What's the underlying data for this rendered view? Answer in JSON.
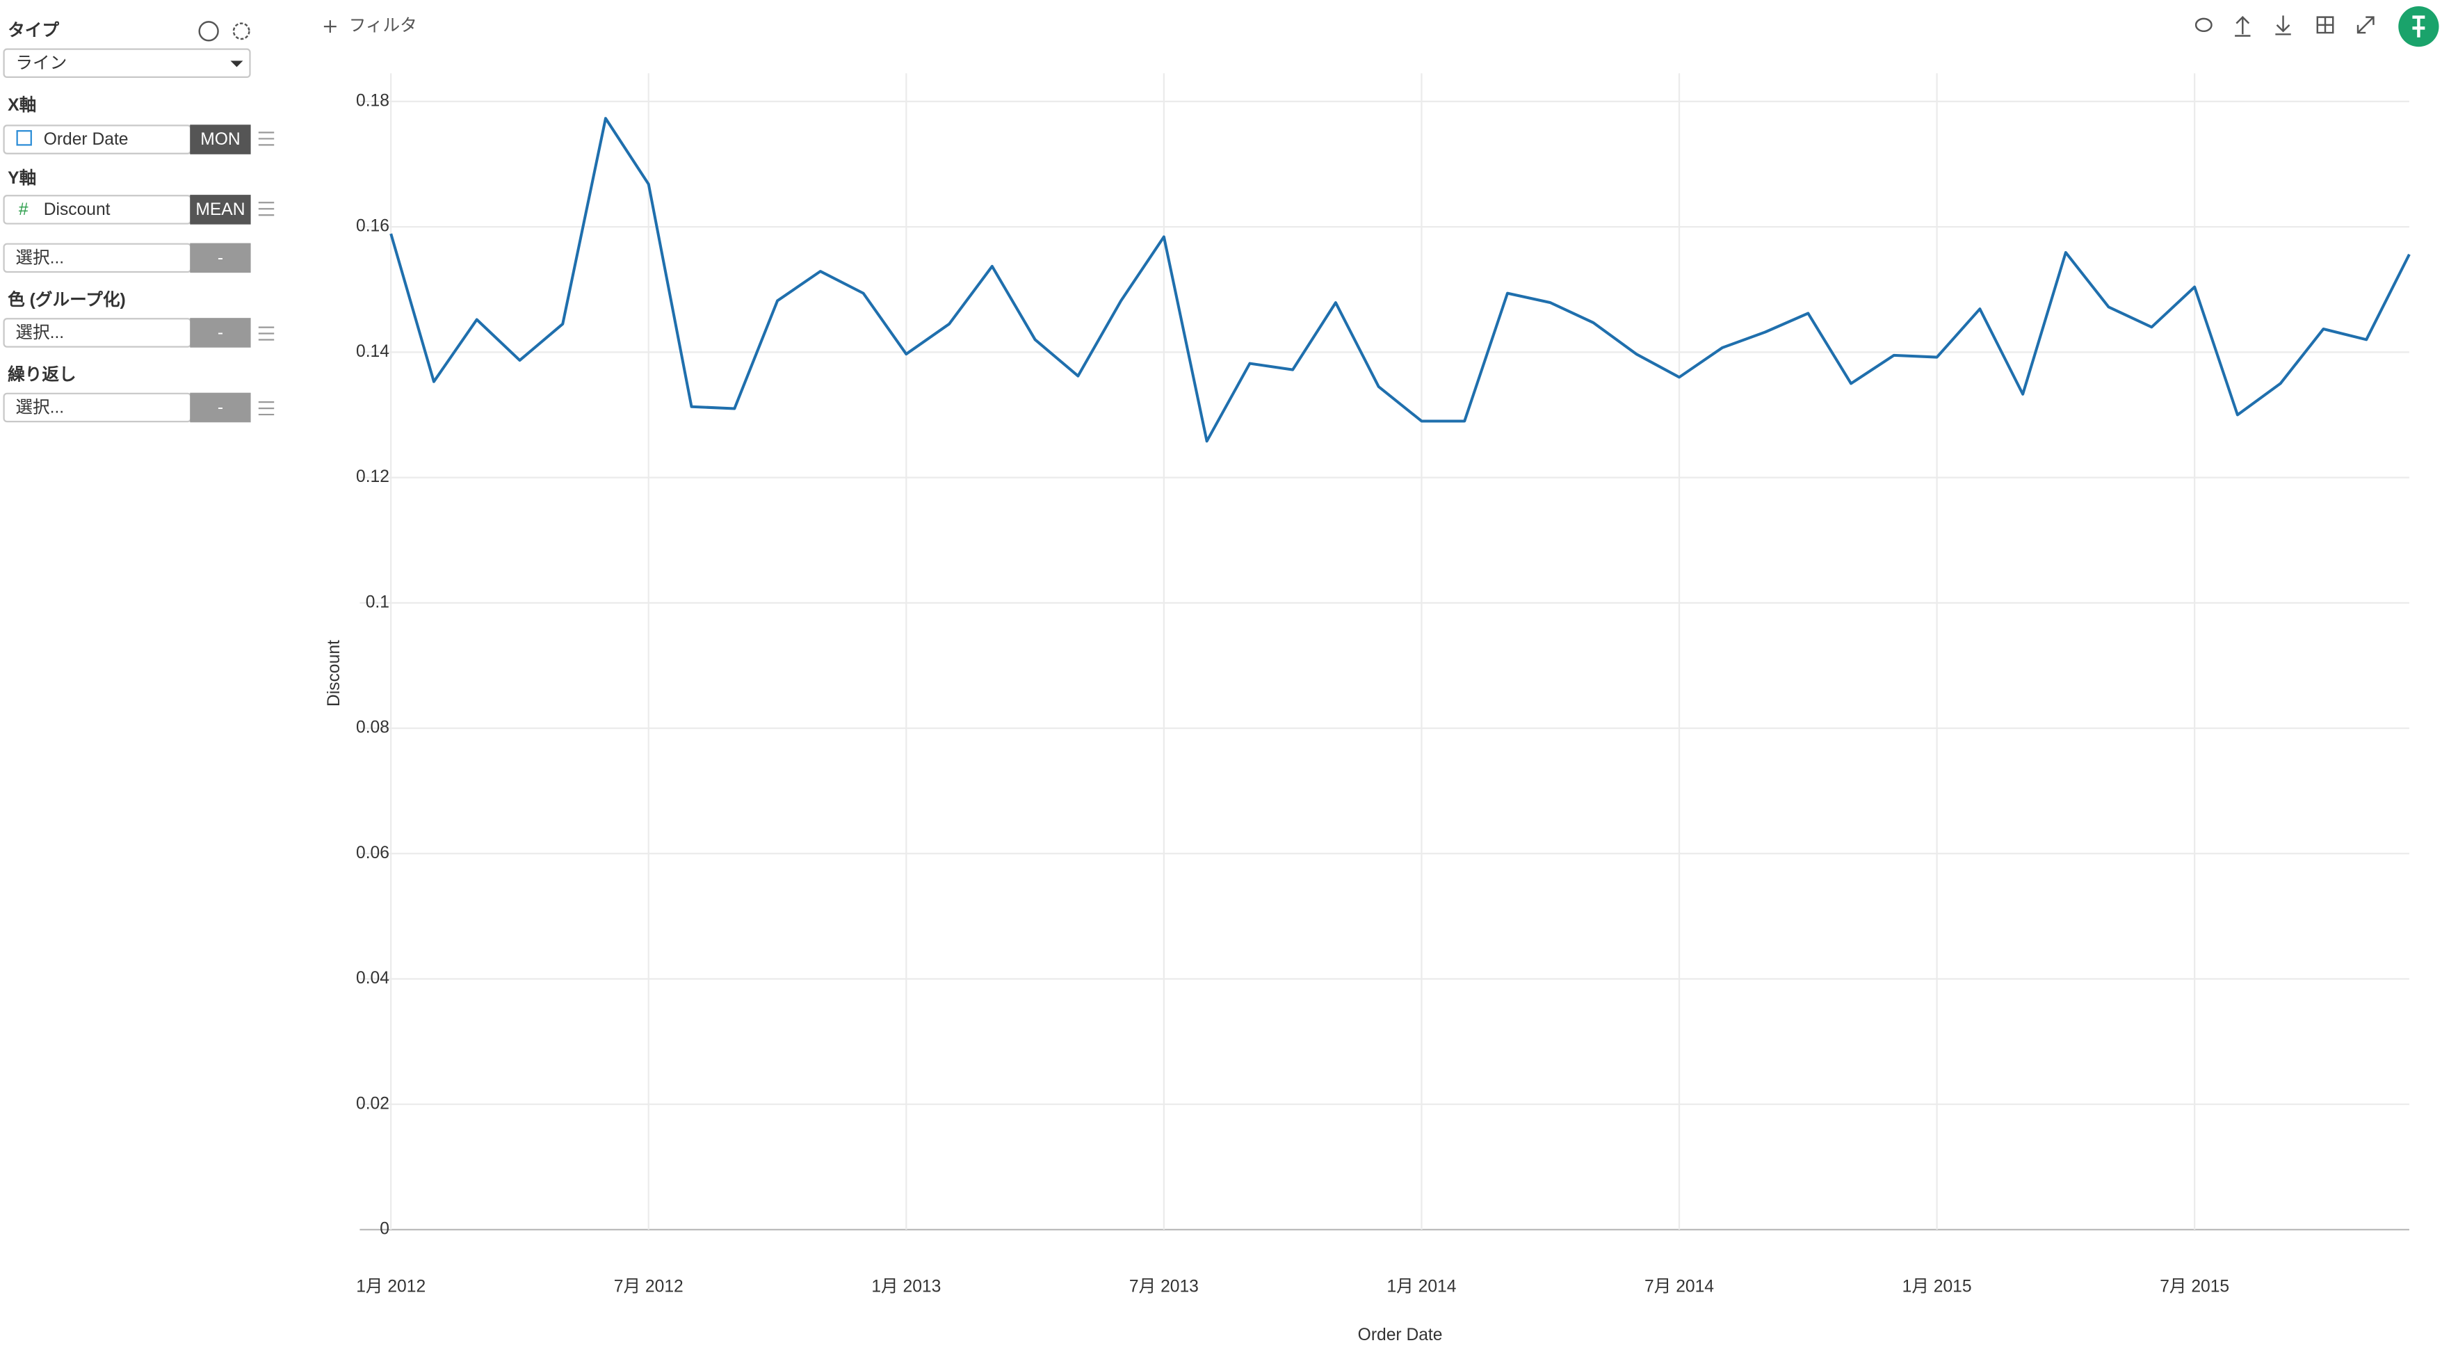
{
  "sidebar": {
    "type_label": "タイプ",
    "type_value": "ライン",
    "x_label": "X軸",
    "x_field": "Order Date",
    "x_agg": "MON",
    "y_label": "Y軸",
    "y_field": "Discount",
    "y_agg": "MEAN",
    "extra_select": {
      "placeholder": "選択...",
      "button": "-"
    },
    "color_label": "色 (グループ化)",
    "color_select": {
      "placeholder": "選択...",
      "button": "-"
    },
    "repeat_label": "繰り返し",
    "repeat_select": {
      "placeholder": "選択...",
      "button": "-"
    }
  },
  "toolbar": {
    "filter": "フィルタ"
  },
  "chart_data": {
    "type": "line",
    "x_label": "Order Date",
    "y_label": "Discount",
    "grid": true,
    "x": [
      "2012-01",
      "2012-02",
      "2012-03",
      "2012-04",
      "2012-05",
      "2012-06",
      "2012-07",
      "2012-08",
      "2012-09",
      "2012-10",
      "2012-11",
      "2012-12",
      "2013-01",
      "2013-02",
      "2013-03",
      "2013-04",
      "2013-05",
      "2013-06",
      "2013-07",
      "2013-08",
      "2013-09",
      "2013-10",
      "2013-11",
      "2013-12",
      "2014-01",
      "2014-02",
      "2014-03",
      "2014-04",
      "2014-05",
      "2014-06",
      "2014-07",
      "2014-08",
      "2014-09",
      "2014-10",
      "2014-11",
      "2014-12",
      "2015-01",
      "2015-02",
      "2015-03",
      "2015-04",
      "2015-05",
      "2015-06",
      "2015-07",
      "2015-08",
      "2015-09",
      "2015-10",
      "2015-11",
      "2015-12"
    ],
    "series": [
      {
        "name": "Discount",
        "color": "#1f6fad",
        "values": [
          0.1589,
          0.1353,
          0.1452,
          0.1387,
          0.1445,
          0.1773,
          0.1668,
          0.1313,
          0.131,
          0.1482,
          0.1529,
          0.1494,
          0.1397,
          0.1445,
          0.1537,
          0.142,
          0.1362,
          0.1482,
          0.1584,
          0.1258,
          0.1382,
          0.1372,
          0.1479,
          0.1345,
          0.129,
          0.129,
          0.1494,
          0.1479,
          0.1447,
          0.1397,
          0.136,
          0.1407,
          0.1432,
          0.1462,
          0.135,
          0.1395,
          0.1392,
          0.1469,
          0.1333,
          0.1559,
          0.1472,
          0.144,
          0.1504,
          0.13,
          0.135,
          0.1437,
          0.142,
          0.1556
        ]
      }
    ],
    "xlim": [
      "2012-01",
      "2015-12"
    ],
    "xticks": [
      {
        "value": "2012-01",
        "label": "1月 2012"
      },
      {
        "value": "2012-07",
        "label": "7月 2012"
      },
      {
        "value": "2013-01",
        "label": "1月 2013"
      },
      {
        "value": "2013-07",
        "label": "7月 2013"
      },
      {
        "value": "2014-01",
        "label": "1月 2014"
      },
      {
        "value": "2014-07",
        "label": "7月 2014"
      },
      {
        "value": "2015-01",
        "label": "1月 2015"
      },
      {
        "value": "2015-07",
        "label": "7月 2015"
      }
    ],
    "ylim": [
      0,
      0.1845
    ],
    "yticks": [
      0,
      0.02,
      0.04,
      0.06,
      0.08,
      0.1,
      0.12,
      0.14,
      0.16,
      0.18
    ]
  }
}
